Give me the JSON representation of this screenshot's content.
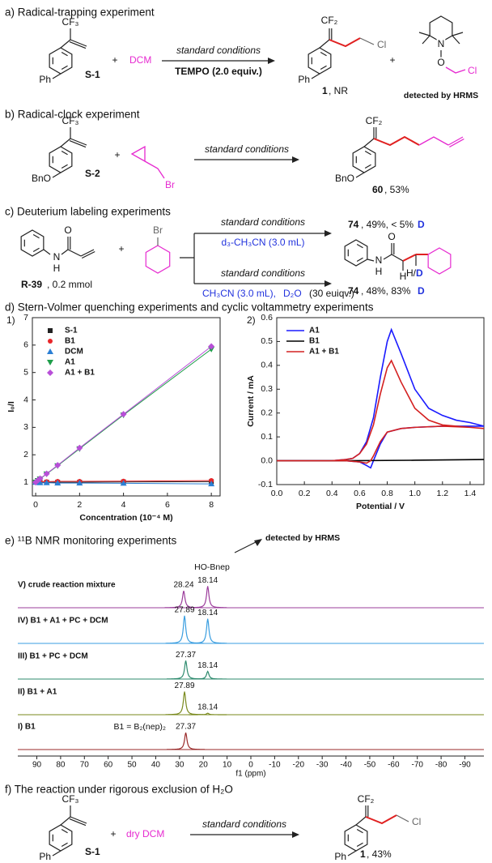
{
  "a": {
    "title": "a) Radical-trapping experiment",
    "reactant_cf3": "CF₃",
    "reactant_ph": "Ph",
    "reactant_label": "S-1",
    "plus1": "+",
    "reagent": "DCM",
    "cond1": "standard conditions",
    "cond2": "TEMPO (2.0 equiv.)",
    "product_cf2": "CF₂",
    "product_cl": "Cl",
    "product_ph": "Ph",
    "product_num": "1",
    "product_result": ", NR",
    "plus2": "+",
    "tempo_n": "N",
    "tempo_o": "O",
    "tempo_cl": "Cl",
    "tempo_note": "detected by HRMS"
  },
  "b": {
    "title": "b) Radical-clock experiment",
    "reactant_cf3": "CF₃",
    "reactant_bno": "BnO",
    "reactant_label": "S-2",
    "plus": "+",
    "reagent_br": "Br",
    "cond": "standard conditions",
    "product_cf2": "CF₂",
    "product_bno": "BnO",
    "product_num": "60",
    "product_yield": ", 53%"
  },
  "c": {
    "title": "c) Deuterium labeling experiments",
    "amide_n": "N",
    "amide_h": "H",
    "amide_o": "O",
    "reactant_label": "R-39",
    "reactant_amount": ", 0.2 mmol",
    "plus": "+",
    "reagent_br": "Br",
    "cond_top": "standard conditions",
    "solvent_top": "d₃-CH₃CN (3.0 mL)",
    "cond_bottom": "standard conditions",
    "solvent_bottom_1": "CH₃CN (3.0 mL),",
    "solvent_bottom_2": "D₂O",
    "solvent_bottom_3": "(30 euiqv.)",
    "product_top_num": "74",
    "product_top_yield": ", 49%, < 5%",
    "product_top_d": "D",
    "product_n": "N",
    "product_nh": "H",
    "product_o": "O",
    "product_h": "H",
    "product_hd": "H/",
    "product_d": "D",
    "product_bottom_num": "74",
    "product_bottom_yield": ", 48%, 83%",
    "product_bottom_d": "D"
  },
  "d": {
    "title": "d) Stern-Volmer quenching experiments and cyclic voltammetry experiments",
    "panel_1": "1)",
    "panel_2": "2)"
  },
  "e": {
    "title": "e) ¹¹B NMR monitoring experiments",
    "hrms_note": "detected by HRMS",
    "hobnep": "HO-Bnep",
    "b1_def": "B1 = B₂(nep)₂"
  },
  "f": {
    "title": "f) The reaction under rigorous exclusion of H₂O",
    "reactant_cf3": "CF₃",
    "reactant_ph": "Ph",
    "reactant_label": "S-1",
    "plus": "+",
    "reagent": "dry DCM",
    "cond": "standard conditions",
    "product_cf2": "CF₂",
    "product_cl": "Cl",
    "product_ph": "Ph",
    "product_num": "1",
    "product_yield": ", 43%"
  },
  "chart_data": [
    {
      "type": "scatter",
      "lines": true,
      "x_label": "Concentration (10⁻⁴ M)",
      "y_label": "I₀/I",
      "legend": "upper left",
      "x": [
        0,
        0.1,
        0.2,
        0.5,
        1,
        2,
        4,
        8
      ],
      "series": [
        {
          "name": "S-1",
          "color": "#222222",
          "marker": "square",
          "values": [
            1,
            1,
            1,
            1,
            1,
            1,
            1.01,
            1.02
          ]
        },
        {
          "name": "B1",
          "color": "#e8262a",
          "marker": "circle",
          "values": [
            1,
            1.01,
            1.02,
            1.02,
            1.03,
            1.03,
            1.04,
            1.06
          ]
        },
        {
          "name": "DCM",
          "color": "#2b7fd4",
          "marker": "triangle-up",
          "values": [
            1,
            0.99,
            0.98,
            0.98,
            0.97,
            0.97,
            0.96,
            0.94
          ]
        },
        {
          "name": "A1",
          "color": "#1f9e4a",
          "marker": "triangle-down",
          "values": [
            1,
            1.06,
            1.12,
            1.3,
            1.6,
            2.22,
            3.45,
            5.85
          ]
        },
        {
          "name": "A1 + B1",
          "color": "#b84fd8",
          "marker": "diamond",
          "values": [
            1,
            1.07,
            1.13,
            1.31,
            1.62,
            2.25,
            3.48,
            5.95
          ]
        }
      ],
      "xlim": [
        -0.15,
        8.4
      ],
      "xticks": [
        0,
        2,
        4,
        6,
        8
      ],
      "ylim": [
        0.5,
        7
      ],
      "yticks": [
        1,
        2,
        3,
        4,
        5,
        6,
        7
      ]
    },
    {
      "type": "line",
      "x_label": "Potential / V",
      "y_label": "Current / mA",
      "legend": "upper left",
      "series": [
        {
          "name": "A1",
          "color": "#1a1aff",
          "x": [
            0,
            0.2,
            0.4,
            0.5,
            0.55,
            0.6,
            0.65,
            0.7,
            0.75,
            0.8,
            0.83,
            0.9,
            1.0,
            1.1,
            1.2,
            1.3,
            1.4,
            1.5,
            1.4,
            1.2,
            1.0,
            0.9,
            0.8,
            0.75,
            0.7,
            0.68,
            0.65,
            0.6,
            0.5,
            0.3,
            0
          ],
          "values": [
            0,
            0,
            0,
            0.005,
            0.01,
            0.03,
            0.08,
            0.18,
            0.35,
            0.5,
            0.55,
            0.45,
            0.3,
            0.22,
            0.19,
            0.17,
            0.16,
            0.145,
            0.145,
            0.145,
            0.14,
            0.135,
            0.12,
            0.07,
            0,
            -0.03,
            -0.02,
            -0.005,
            0,
            0,
            0
          ]
        },
        {
          "name": "B1",
          "color": "#000000",
          "x": [
            0,
            0.5,
            1.0,
            1.5
          ],
          "values": [
            0,
            0,
            0.002,
            0.005
          ]
        },
        {
          "name": "A1 + B1",
          "color": "#d42020",
          "x": [
            0,
            0.2,
            0.4,
            0.5,
            0.55,
            0.6,
            0.65,
            0.7,
            0.75,
            0.8,
            0.83,
            0.9,
            1.0,
            1.1,
            1.2,
            1.3,
            1.4,
            1.5,
            1.4,
            1.2,
            1.0,
            0.9,
            0.8,
            0.75,
            0.7,
            0.68,
            0.65,
            0.6,
            0.5,
            0.3,
            0
          ],
          "values": [
            0,
            0,
            0,
            0.005,
            0.01,
            0.03,
            0.07,
            0.15,
            0.28,
            0.39,
            0.42,
            0.33,
            0.22,
            0.17,
            0.15,
            0.145,
            0.14,
            0.135,
            0.14,
            0.145,
            0.14,
            0.135,
            0.12,
            0.08,
            0.02,
            0,
            -0.01,
            -0.005,
            0,
            0,
            0
          ]
        }
      ],
      "xlim": [
        0,
        1.5
      ],
      "xticks": [
        {
          "value": 0,
          "label": "0.0"
        },
        0.2,
        0.4,
        0.6,
        0.8,
        {
          "value": 1,
          "label": "1.0"
        },
        1.2,
        1.4
      ],
      "ylim": [
        -0.1,
        0.6
      ],
      "yticks": [
        -0.1,
        {
          "value": 0,
          "label": "0.0"
        },
        0.1,
        0.2,
        0.3,
        0.4,
        0.5,
        0.6
      ]
    },
    {
      "type": "spectrum",
      "x_label": "f1 (ppm)",
      "series": [
        {
          "name": "V) crude reaction mixture",
          "color": "#9b3c9b",
          "peaks": [
            28.24,
            18.14
          ],
          "intensities": [
            0.55,
            0.7
          ]
        },
        {
          "name": "IV) B1 + A1 + PC + DCM",
          "color": "#3a9ee0",
          "peaks": [
            27.89,
            18.14
          ],
          "intensities": [
            0.9,
            0.8
          ]
        },
        {
          "name": "III) B1 + PC + DCM",
          "color": "#2e8b6e",
          "peaks": [
            27.37,
            18.14
          ],
          "intensities": [
            0.6,
            0.25
          ]
        },
        {
          "name": "II) B1 + A1",
          "color": "#7a8a1e",
          "peaks": [
            27.89,
            18.14
          ],
          "intensities": [
            0.75,
            0.05
          ]
        },
        {
          "name": "I) B1",
          "color": "#9a2a2a",
          "peaks": [
            27.37
          ],
          "intensities": [
            0.55
          ]
        }
      ],
      "xlim": [
        98,
        -98
      ],
      "xticks": [
        90,
        80,
        70,
        60,
        50,
        40,
        30,
        20,
        10,
        0,
        -10,
        -20,
        -30,
        -40,
        -50,
        -60,
        -70,
        -80,
        -90
      ]
    }
  ]
}
